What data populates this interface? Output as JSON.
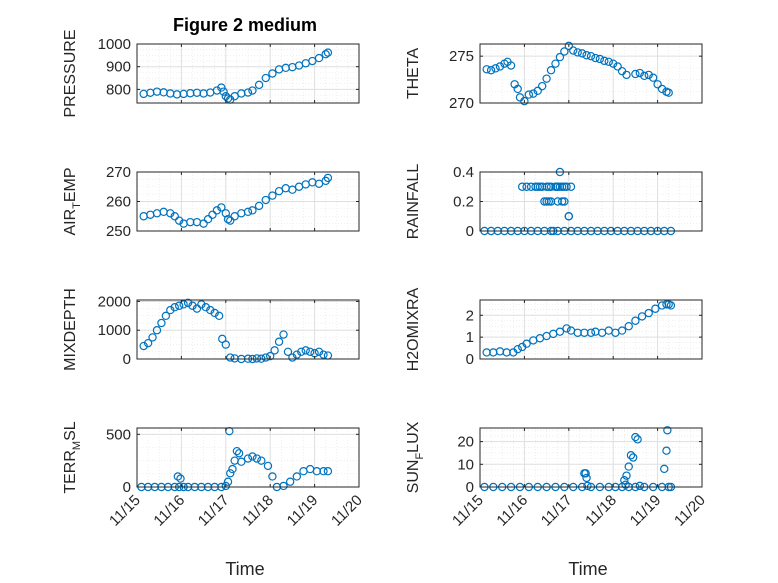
{
  "figure": {
    "title": "Figure 2 medium",
    "x_label": "Time"
  },
  "chart_data": [
    {
      "type": "scatter",
      "name": "pressure",
      "ylabel": "PRESSURE",
      "ylim": [
        740,
        1000
      ],
      "yticks": [
        800,
        900,
        1000
      ],
      "xticks": [
        "11/15",
        "11/16",
        "11/17",
        "11/18",
        "11/19",
        "11/20"
      ],
      "xlim": [
        15,
        20
      ],
      "x": [
        15.15,
        15.3,
        15.45,
        15.6,
        15.75,
        15.9,
        16.05,
        16.2,
        16.35,
        16.5,
        16.65,
        16.8,
        16.9,
        16.95,
        17.0,
        17.05,
        17.1,
        17.2,
        17.35,
        17.5,
        17.6,
        17.75,
        17.9,
        18.05,
        18.2,
        18.35,
        18.5,
        18.65,
        18.8,
        18.95,
        19.1,
        19.25,
        19.3
      ],
      "y": [
        780,
        785,
        790,
        787,
        782,
        778,
        780,
        783,
        785,
        782,
        786,
        795,
        808,
        790,
        770,
        760,
        755,
        770,
        782,
        786,
        795,
        820,
        850,
        870,
        888,
        895,
        898,
        905,
        915,
        925,
        938,
        955,
        962
      ]
    },
    {
      "type": "scatter",
      "name": "theta",
      "ylabel": "THETA",
      "ylim": [
        270,
        276.3
      ],
      "yticks": [
        270,
        275
      ],
      "xticks": [
        "11/15",
        "11/16",
        "11/17",
        "11/18",
        "11/19",
        "11/20"
      ],
      "xlim": [
        15,
        20
      ],
      "x": [
        15.15,
        15.25,
        15.35,
        15.45,
        15.55,
        15.62,
        15.7,
        15.78,
        15.85,
        15.9,
        16.0,
        16.1,
        16.2,
        16.3,
        16.4,
        16.5,
        16.6,
        16.7,
        16.8,
        16.9,
        17.0,
        17.1,
        17.2,
        17.3,
        17.4,
        17.5,
        17.6,
        17.7,
        17.8,
        17.9,
        18.0,
        18.1,
        18.2,
        18.3,
        18.5,
        18.6,
        18.7,
        18.8,
        18.9,
        19.0,
        19.1,
        19.2,
        19.25
      ],
      "y": [
        273.6,
        273.5,
        273.7,
        273.9,
        274.2,
        274.4,
        274.0,
        272.0,
        271.5,
        270.6,
        270.2,
        270.9,
        271.0,
        271.3,
        271.8,
        272.6,
        273.5,
        274.2,
        274.9,
        275.5,
        276.1,
        275.6,
        275.4,
        275.3,
        275.1,
        275.0,
        274.8,
        274.7,
        274.5,
        274.4,
        274.2,
        273.9,
        273.4,
        273.0,
        273.1,
        273.2,
        272.9,
        273.0,
        272.7,
        272.0,
        271.5,
        271.2,
        271.1
      ]
    },
    {
      "type": "scatter",
      "name": "air-temp",
      "ylabel": "AIR",
      "ylabel_sub": "T",
      "ylabel_tail": "EMP",
      "ylim": [
        250,
        270
      ],
      "yticks": [
        250,
        260,
        270
      ],
      "xticks": [
        "11/15",
        "11/16",
        "11/17",
        "11/18",
        "11/19",
        "11/20"
      ],
      "xlim": [
        15,
        20
      ],
      "x": [
        15.15,
        15.3,
        15.45,
        15.6,
        15.75,
        15.85,
        15.95,
        16.05,
        16.2,
        16.35,
        16.5,
        16.6,
        16.7,
        16.8,
        16.9,
        17.0,
        17.05,
        17.1,
        17.2,
        17.35,
        17.5,
        17.6,
        17.75,
        17.9,
        18.05,
        18.2,
        18.35,
        18.5,
        18.65,
        18.8,
        18.95,
        19.1,
        19.25,
        19.3
      ],
      "y": [
        255,
        255.5,
        256,
        256.5,
        256,
        255,
        253.5,
        252.5,
        253,
        253,
        252.5,
        254,
        255.5,
        257,
        258,
        256,
        254,
        253.5,
        255,
        256,
        256.5,
        257,
        258.5,
        260.5,
        262,
        263.5,
        264.5,
        264,
        265,
        265.8,
        266.5,
        266,
        267,
        268
      ]
    },
    {
      "type": "scatter",
      "name": "rainfall",
      "ylabel": "RAINFALL",
      "ylim": [
        0,
        0.4
      ],
      "yticks": [
        0,
        0.2,
        0.4
      ],
      "xticks": [
        "11/15",
        "11/16",
        "11/17",
        "11/18",
        "11/19",
        "11/20"
      ],
      "xlim": [
        15,
        20
      ],
      "x": [
        15.1,
        15.25,
        15.4,
        15.55,
        15.7,
        15.85,
        16.0,
        16.15,
        16.3,
        16.45,
        16.6,
        16.75,
        16.9,
        17.05,
        17.2,
        17.35,
        17.5,
        17.65,
        17.8,
        17.95,
        18.1,
        18.25,
        18.4,
        18.55,
        18.7,
        18.85,
        19.0,
        19.15,
        19.3,
        15.95,
        16.05,
        16.15,
        16.25,
        16.3,
        16.35,
        16.4,
        16.5,
        16.55,
        16.6,
        16.7,
        16.72,
        16.75,
        16.8,
        16.85,
        16.9,
        16.95,
        17.05,
        17.0,
        16.45,
        16.5,
        16.55,
        16.6,
        16.75,
        16.85,
        16.9,
        17.0,
        16.65,
        16.8
      ],
      "y": [
        0,
        0,
        0,
        0,
        0,
        0,
        0,
        0,
        0,
        0,
        0,
        0,
        0,
        0,
        0,
        0,
        0,
        0,
        0,
        0,
        0,
        0,
        0,
        0,
        0,
        0,
        0,
        0,
        0,
        0.3,
        0.3,
        0.3,
        0.3,
        0.3,
        0.3,
        0.3,
        0.3,
        0.3,
        0.3,
        0.3,
        0.3,
        0.3,
        0.3,
        0.3,
        0.3,
        0.3,
        0.3,
        0.1,
        0.2,
        0.2,
        0.2,
        0.2,
        0.2,
        0.2,
        0.2,
        0.1,
        0.0,
        0.4
      ]
    },
    {
      "type": "scatter",
      "name": "mixdepth",
      "ylabel": "MIXDEPTH",
      "ylim": [
        0,
        2050
      ],
      "yticks": [
        0,
        1000,
        2000
      ],
      "xticks": [
        "11/15",
        "11/16",
        "11/17",
        "11/18",
        "11/19",
        "11/20"
      ],
      "xlim": [
        15,
        20
      ],
      "x": [
        15.15,
        15.25,
        15.35,
        15.45,
        15.55,
        15.65,
        15.75,
        15.85,
        15.95,
        16.05,
        16.15,
        16.25,
        16.35,
        16.45,
        16.55,
        16.65,
        16.75,
        16.85,
        16.92,
        17.0,
        17.1,
        17.2,
        17.35,
        17.5,
        17.6,
        17.7,
        17.8,
        17.9,
        18.0,
        18.1,
        18.2,
        18.3,
        18.4,
        18.5,
        18.6,
        18.7,
        18.8,
        18.9,
        19.0,
        19.1,
        19.2,
        19.3
      ],
      "y": [
        450,
        550,
        750,
        1000,
        1250,
        1500,
        1700,
        1800,
        1850,
        1900,
        1950,
        1850,
        1750,
        1900,
        1800,
        1700,
        1600,
        1500,
        700,
        500,
        50,
        20,
        0,
        10,
        0,
        20,
        10,
        50,
        100,
        300,
        600,
        850,
        250,
        50,
        150,
        250,
        300,
        250,
        200,
        250,
        150,
        120
      ]
    },
    {
      "type": "scatter",
      "name": "h2omixra",
      "ylabel": "H2OMIXRA",
      "ylim": [
        0,
        2.7
      ],
      "yticks": [
        0,
        1,
        2
      ],
      "xticks": [
        "11/15",
        "11/16",
        "11/17",
        "11/18",
        "11/19",
        "11/20"
      ],
      "xlim": [
        15,
        20
      ],
      "x": [
        15.15,
        15.3,
        15.45,
        15.6,
        15.75,
        15.85,
        15.95,
        16.05,
        16.2,
        16.35,
        16.5,
        16.65,
        16.8,
        16.95,
        17.05,
        17.2,
        17.35,
        17.5,
        17.6,
        17.75,
        17.9,
        18.05,
        18.2,
        18.35,
        18.5,
        18.65,
        18.8,
        18.95,
        19.1,
        19.2,
        19.25,
        19.3
      ],
      "y": [
        0.3,
        0.3,
        0.35,
        0.3,
        0.3,
        0.45,
        0.55,
        0.7,
        0.85,
        0.95,
        1.05,
        1.15,
        1.25,
        1.4,
        1.3,
        1.2,
        1.2,
        1.2,
        1.25,
        1.2,
        1.3,
        1.2,
        1.3,
        1.5,
        1.75,
        1.95,
        2.1,
        2.3,
        2.45,
        2.5,
        2.5,
        2.45
      ]
    },
    {
      "type": "scatter",
      "name": "terr-msl",
      "ylabel": "TERR",
      "ylabel_sub": "M",
      "ylabel_tail": "SL",
      "ylim": [
        0,
        560
      ],
      "yticks": [
        0,
        500
      ],
      "xticks": [
        "11/15",
        "11/16",
        "11/17",
        "11/18",
        "11/19",
        "11/20"
      ],
      "xlim": [
        15,
        20
      ],
      "x": [
        15.1,
        15.25,
        15.4,
        15.55,
        15.7,
        15.85,
        15.95,
        16.05,
        16.15,
        16.3,
        16.45,
        16.6,
        16.75,
        16.9,
        17.0,
        17.05,
        17.1,
        17.15,
        17.2,
        17.25,
        17.3,
        17.35,
        17.5,
        17.6,
        17.7,
        17.8,
        17.95,
        18.05,
        18.15,
        18.3,
        18.45,
        18.6,
        18.75,
        18.9,
        19.05,
        19.2,
        19.3,
        17.08,
        15.92,
        15.98
      ],
      "y": [
        0,
        0,
        0,
        0,
        0,
        0,
        0,
        0,
        0,
        0,
        0,
        0,
        0,
        0,
        10,
        50,
        130,
        170,
        250,
        340,
        320,
        240,
        270,
        290,
        270,
        250,
        200,
        100,
        0,
        10,
        50,
        100,
        150,
        170,
        150,
        150,
        150,
        530,
        100,
        80
      ]
    },
    {
      "type": "scatter",
      "name": "sun-flux",
      "ylabel": "SUN",
      "ylabel_sub": "F",
      "ylabel_tail": "LUX",
      "ylim": [
        0,
        26
      ],
      "yticks": [
        0,
        10,
        20
      ],
      "xticks": [
        "11/15",
        "11/16",
        "11/17",
        "11/18",
        "11/19",
        "11/20"
      ],
      "xlim": [
        15,
        20
      ],
      "x": [
        15.1,
        15.3,
        15.5,
        15.7,
        15.9,
        16.1,
        16.3,
        16.5,
        16.7,
        16.9,
        17.1,
        17.3,
        17.5,
        17.7,
        17.9,
        18.05,
        18.2,
        18.35,
        18.5,
        18.7,
        18.9,
        19.1,
        19.25,
        19.3,
        17.35,
        17.38,
        17.4,
        17.42,
        18.3,
        18.35,
        18.4,
        18.45,
        18.5,
        18.55,
        18.25,
        18.28,
        18.6,
        19.15,
        19.2,
        19.22
      ],
      "y": [
        0,
        0,
        0,
        0,
        0,
        0,
        0,
        0,
        0,
        0,
        0,
        0,
        0,
        0,
        0,
        0,
        0,
        0,
        0,
        0,
        0,
        0,
        0,
        0,
        6,
        6,
        4,
        0.5,
        5,
        9,
        14,
        13,
        22,
        21,
        3,
        1,
        0.5,
        8,
        16,
        25
      ]
    }
  ]
}
